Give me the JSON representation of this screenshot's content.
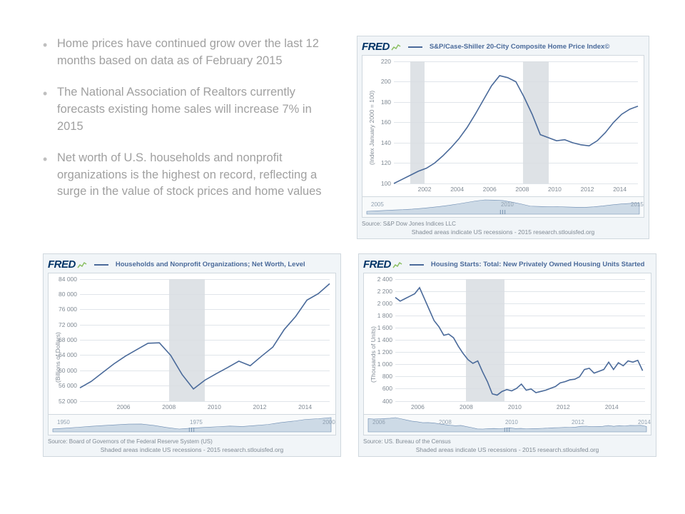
{
  "bullets": [
    "Home prices have continued grow over the last 12 months based on data as of February 2015",
    "The National Association of Realtors currently forecasts existing home sales will increase 7% in 2015",
    "Net worth of U.S. households and nonprofit organizations is the highest on record, reflecting a surge in the value of stock prices and home values"
  ],
  "charts": {
    "case_shiller": {
      "logo": "FRED",
      "title": "S&P/Case-Shiller 20-City Composite Home Price Index©",
      "ylabel": "(Index January 2000 = 100)",
      "line_color": "#4a6a9a",
      "grid_color": "#e0e5ea",
      "bg": "#ffffff",
      "ylim": [
        100,
        220
      ],
      "yticks": [
        100,
        120,
        140,
        160,
        180,
        200,
        220
      ],
      "xlim": [
        2000,
        2015
      ],
      "xticks": [
        2002,
        2004,
        2006,
        2008,
        2010,
        2012,
        2014
      ],
      "recessions": [
        [
          2001,
          2001.9
        ],
        [
          2007.92,
          2009.5
        ]
      ],
      "mini_ticks": [
        "2005",
        "2010",
        "2015"
      ],
      "source": "Source: S&P Dow Jones Indices LLC",
      "footer": "Shaded areas indicate US recessions - 2015 research.stlouisfed.org",
      "series": [
        [
          2000.0,
          100
        ],
        [
          2000.5,
          104
        ],
        [
          2001,
          108
        ],
        [
          2001.5,
          112
        ],
        [
          2002,
          115
        ],
        [
          2002.5,
          120
        ],
        [
          2003,
          127
        ],
        [
          2003.5,
          135
        ],
        [
          2004,
          144
        ],
        [
          2004.5,
          155
        ],
        [
          2005,
          168
        ],
        [
          2005.5,
          182
        ],
        [
          2006,
          196
        ],
        [
          2006.5,
          206
        ],
        [
          2007,
          204
        ],
        [
          2007.5,
          200
        ],
        [
          2008,
          185
        ],
        [
          2008.5,
          168
        ],
        [
          2009,
          148
        ],
        [
          2009.5,
          145
        ],
        [
          2010,
          142
        ],
        [
          2010.5,
          143
        ],
        [
          2011,
          140
        ],
        [
          2011.5,
          138
        ],
        [
          2012,
          137
        ],
        [
          2012.5,
          142
        ],
        [
          2013,
          150
        ],
        [
          2013.5,
          160
        ],
        [
          2014,
          168
        ],
        [
          2014.5,
          173
        ],
        [
          2015,
          176
        ]
      ]
    },
    "net_worth": {
      "logo": "FRED",
      "title": "Households and Nonprofit Organizations; Net Worth, Level",
      "ylabel": "(Billions of Dollars)",
      "line_color": "#4a6a9a",
      "grid_color": "#e0e5ea",
      "bg": "#ffffff",
      "ylim": [
        52000,
        84000
      ],
      "yticks": [
        52000,
        56000,
        60000,
        64000,
        68000,
        72000,
        76000,
        80000,
        84000
      ],
      "xlim": [
        2004,
        2015
      ],
      "xticks": [
        2006,
        2008,
        2010,
        2012,
        2014
      ],
      "recessions": [
        [
          2007.92,
          2009.5
        ]
      ],
      "mini_ticks": [
        "1950",
        "1975",
        "2000"
      ],
      "source": "Source: Board of Governors of the Federal Reserve System (US)",
      "footer": "Shaded areas indicate US recessions - 2015 research.stlouisfed.org",
      "series": [
        [
          2004,
          55500
        ],
        [
          2004.5,
          57200
        ],
        [
          2005,
          59500
        ],
        [
          2005.5,
          61800
        ],
        [
          2006,
          63800
        ],
        [
          2006.5,
          65500
        ],
        [
          2007,
          67200
        ],
        [
          2007.5,
          67300
        ],
        [
          2008,
          64000
        ],
        [
          2008.5,
          59000
        ],
        [
          2009,
          55200
        ],
        [
          2009.5,
          57500
        ],
        [
          2010,
          59200
        ],
        [
          2010.5,
          60800
        ],
        [
          2011,
          62500
        ],
        [
          2011.5,
          61300
        ],
        [
          2012,
          63800
        ],
        [
          2012.5,
          66200
        ],
        [
          2013,
          70800
        ],
        [
          2013.5,
          74200
        ],
        [
          2014,
          78500
        ],
        [
          2014.5,
          80200
        ],
        [
          2015,
          82800
        ]
      ]
    },
    "housing_starts": {
      "logo": "FRED",
      "title": "Housing Starts: Total: New Privately Owned Housing Units Started",
      "ylabel": "(Thousands of Units)",
      "line_color": "#4a6a9a",
      "grid_color": "#e0e5ea",
      "bg": "#ffffff",
      "ylim": [
        400,
        2400
      ],
      "yticks": [
        400,
        600,
        800,
        1000,
        1200,
        1400,
        1600,
        1800,
        2000,
        2200,
        2400
      ],
      "xlim": [
        2005,
        2015.3
      ],
      "xticks": [
        2006,
        2008,
        2010,
        2012,
        2014
      ],
      "recessions": [
        [
          2007.92,
          2009.5
        ]
      ],
      "mini_ticks": [
        "2006",
        "2008",
        "2010",
        "2012",
        "2014"
      ],
      "source": "Source: US. Bureau of the Census",
      "footer": "Shaded areas indicate US recessions - 2015 research.stlouisfed.org",
      "series": [
        [
          2005.0,
          2100
        ],
        [
          2005.2,
          2040
        ],
        [
          2005.4,
          2080
        ],
        [
          2005.6,
          2120
        ],
        [
          2005.8,
          2160
        ],
        [
          2006.0,
          2260
        ],
        [
          2006.2,
          2080
        ],
        [
          2006.4,
          1900
        ],
        [
          2006.6,
          1720
        ],
        [
          2006.8,
          1620
        ],
        [
          2007.0,
          1480
        ],
        [
          2007.2,
          1500
        ],
        [
          2007.4,
          1440
        ],
        [
          2007.6,
          1300
        ],
        [
          2007.8,
          1180
        ],
        [
          2008.0,
          1080
        ],
        [
          2008.2,
          1020
        ],
        [
          2008.4,
          1060
        ],
        [
          2008.6,
          880
        ],
        [
          2008.8,
          720
        ],
        [
          2009.0,
          520
        ],
        [
          2009.2,
          500
        ],
        [
          2009.4,
          560
        ],
        [
          2009.6,
          590
        ],
        [
          2009.8,
          570
        ],
        [
          2010.0,
          610
        ],
        [
          2010.2,
          680
        ],
        [
          2010.4,
          580
        ],
        [
          2010.6,
          600
        ],
        [
          2010.8,
          540
        ],
        [
          2011.0,
          560
        ],
        [
          2011.2,
          580
        ],
        [
          2011.4,
          610
        ],
        [
          2011.6,
          640
        ],
        [
          2011.8,
          700
        ],
        [
          2012.0,
          720
        ],
        [
          2012.2,
          750
        ],
        [
          2012.4,
          760
        ],
        [
          2012.6,
          800
        ],
        [
          2012.8,
          920
        ],
        [
          2013.0,
          940
        ],
        [
          2013.2,
          860
        ],
        [
          2013.4,
          890
        ],
        [
          2013.6,
          920
        ],
        [
          2013.8,
          1040
        ],
        [
          2014.0,
          920
        ],
        [
          2014.2,
          1030
        ],
        [
          2014.4,
          980
        ],
        [
          2014.6,
          1060
        ],
        [
          2014.8,
          1040
        ],
        [
          2015.0,
          1070
        ],
        [
          2015.2,
          900
        ]
      ]
    }
  }
}
